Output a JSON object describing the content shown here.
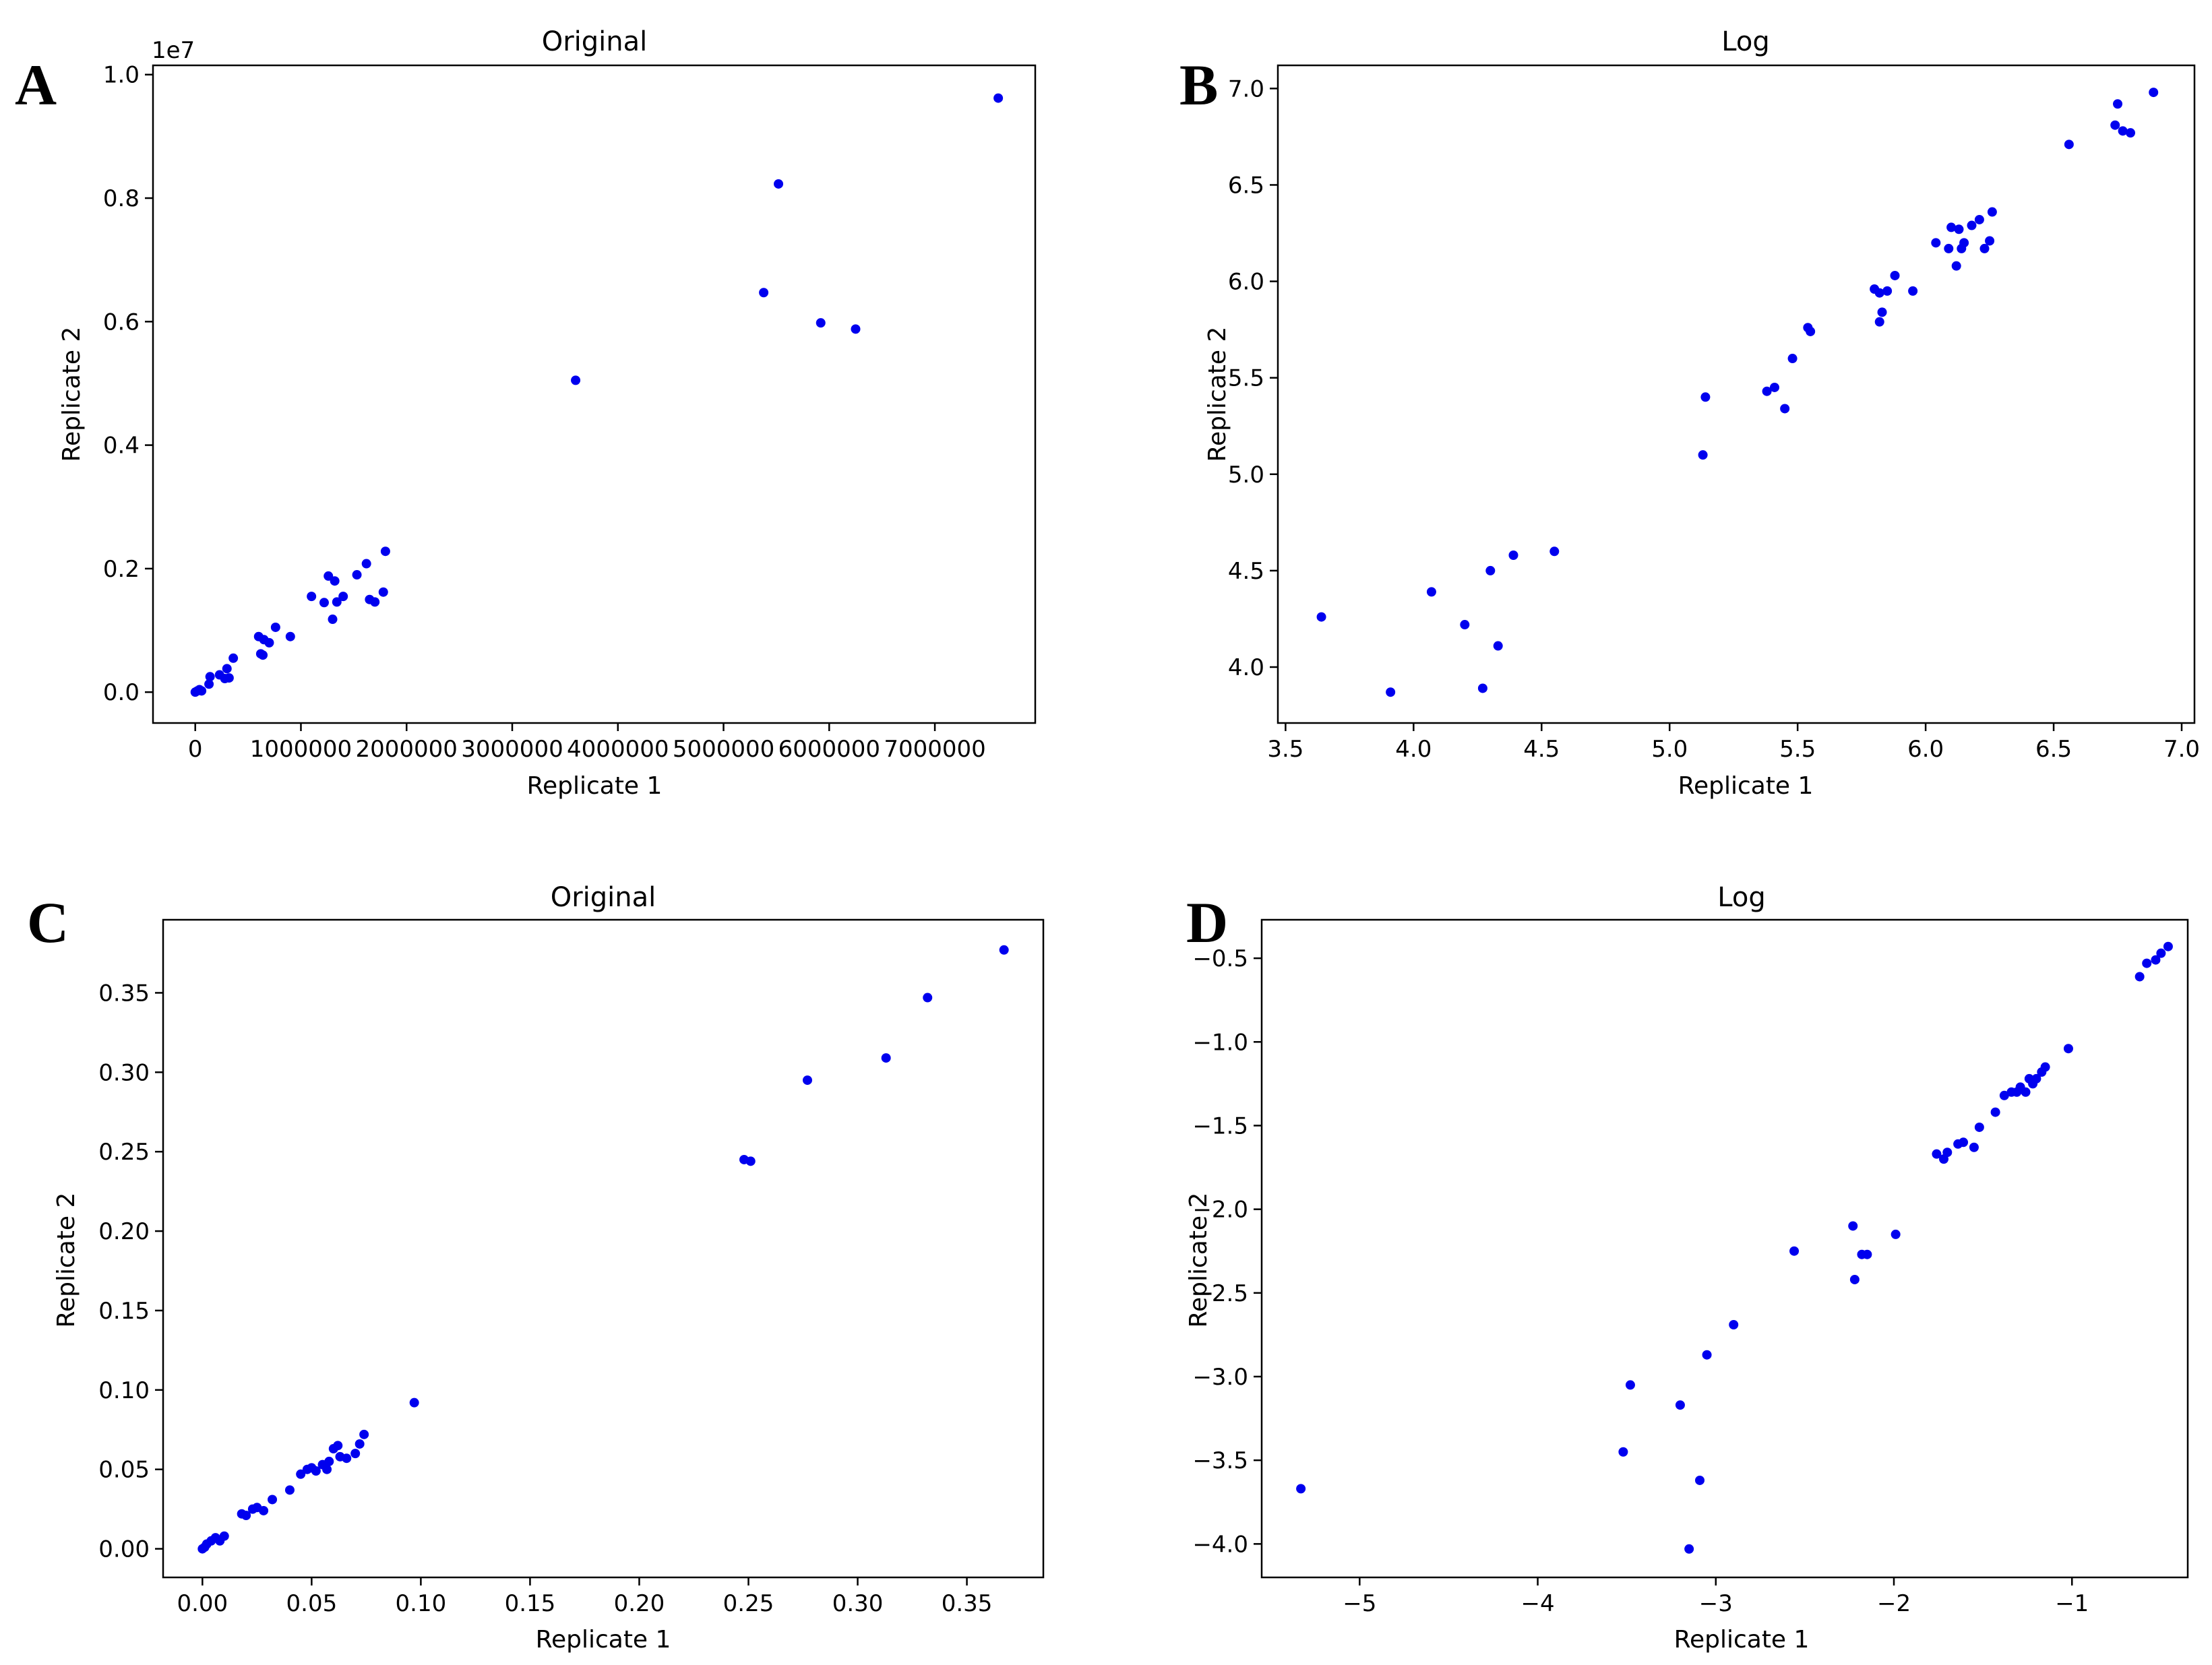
{
  "colors": {
    "point": "#0000ee",
    "axis": "#000000",
    "background": "#ffffff"
  },
  "chart_data": [
    {
      "panel": "A",
      "type": "scatter",
      "title": "Original",
      "xlabel": "Replicate 1",
      "ylabel": "Replicate 2",
      "y_offset_label": "1e7",
      "xlim": [
        -400000,
        7950000
      ],
      "ylim": [
        -500000,
        10150000
      ],
      "xticks": [
        0,
        1000000,
        2000000,
        3000000,
        4000000,
        5000000,
        6000000,
        7000000
      ],
      "xtick_labels": [
        "0",
        "1000000",
        "2000000",
        "3000000",
        "4000000",
        "5000000",
        "6000000",
        "7000000"
      ],
      "yticks": [
        0,
        2000000,
        4000000,
        6000000,
        8000000,
        10000000
      ],
      "ytick_labels": [
        "0.0",
        "0.2",
        "0.4",
        "0.6",
        "0.8",
        "1.0"
      ],
      "x": [
        0,
        20000,
        40000,
        60000,
        130000,
        140000,
        230000,
        280000,
        300000,
        320000,
        360000,
        600000,
        620000,
        640000,
        650000,
        700000,
        760000,
        900000,
        1100000,
        1220000,
        1260000,
        1300000,
        1320000,
        1340000,
        1400000,
        1530000,
        1620000,
        1650000,
        1700000,
        1780000,
        1800000,
        3600000,
        5380000,
        5520000,
        5920000,
        6250000,
        7600000
      ],
      "y": [
        0,
        20000,
        40000,
        20000,
        130000,
        250000,
        280000,
        220000,
        380000,
        230000,
        550000,
        900000,
        620000,
        600000,
        850000,
        800000,
        1050000,
        900000,
        1550000,
        1450000,
        1880000,
        1180000,
        1800000,
        1460000,
        1550000,
        1900000,
        2080000,
        1500000,
        1460000,
        1620000,
        2280000,
        5050000,
        6470000,
        8230000,
        5980000,
        5880000,
        9620000
      ]
    },
    {
      "panel": "B",
      "type": "scatter",
      "title": "Log",
      "xlabel": "Replicate 1",
      "ylabel": "Replicate 2",
      "xlim": [
        3.47,
        7.05
      ],
      "ylim": [
        3.71,
        7.12
      ],
      "xticks": [
        3.5,
        4.0,
        4.5,
        5.0,
        5.5,
        6.0,
        6.5,
        7.0
      ],
      "xtick_labels": [
        "3.5",
        "4.0",
        "4.5",
        "5.0",
        "5.5",
        "6.0",
        "6.5",
        "7.0"
      ],
      "yticks": [
        4.0,
        4.5,
        5.0,
        5.5,
        6.0,
        6.5,
        7.0
      ],
      "ytick_labels": [
        "4.0",
        "4.5",
        "5.0",
        "5.5",
        "6.0",
        "6.5",
        "7.0"
      ],
      "x": [
        3.64,
        3.91,
        4.07,
        4.2,
        4.27,
        4.3,
        4.33,
        4.39,
        4.55,
        5.13,
        5.14,
        5.38,
        5.41,
        5.45,
        5.48,
        5.54,
        5.55,
        5.8,
        5.82,
        5.82,
        5.83,
        5.85,
        5.88,
        5.95,
        6.04,
        6.09,
        6.1,
        6.12,
        6.13,
        6.14,
        6.15,
        6.18,
        6.21,
        6.23,
        6.25,
        6.26,
        6.56,
        6.74,
        6.75,
        6.77,
        6.8,
        6.89
      ],
      "y": [
        4.26,
        3.87,
        4.39,
        4.22,
        3.89,
        4.5,
        4.11,
        4.58,
        4.6,
        5.1,
        5.4,
        5.43,
        5.45,
        5.34,
        5.6,
        5.76,
        5.74,
        5.96,
        5.94,
        5.79,
        5.84,
        5.95,
        6.03,
        5.95,
        6.2,
        6.17,
        6.28,
        6.08,
        6.27,
        6.17,
        6.2,
        6.29,
        6.32,
        6.17,
        6.21,
        6.36,
        6.71,
        6.81,
        6.92,
        6.78,
        6.77,
        6.98
      ]
    },
    {
      "panel": "C",
      "type": "scatter",
      "title": "Original",
      "xlabel": "Replicate 1",
      "ylabel": "Replicate 2",
      "xlim": [
        -0.018,
        0.385
      ],
      "ylim": [
        -0.018,
        0.396
      ],
      "xticks": [
        0.0,
        0.05,
        0.1,
        0.15,
        0.2,
        0.25,
        0.3,
        0.35
      ],
      "xtick_labels": [
        "0.00",
        "0.05",
        "0.10",
        "0.15",
        "0.20",
        "0.25",
        "0.30",
        "0.35"
      ],
      "yticks": [
        0.0,
        0.05,
        0.1,
        0.15,
        0.2,
        0.25,
        0.3,
        0.35
      ],
      "ytick_labels": [
        "0.00",
        "0.05",
        "0.10",
        "0.15",
        "0.20",
        "0.25",
        "0.30",
        "0.35"
      ],
      "x": [
        0.0,
        0.001,
        0.002,
        0.004,
        0.006,
        0.008,
        0.01,
        0.018,
        0.02,
        0.023,
        0.025,
        0.028,
        0.032,
        0.04,
        0.045,
        0.048,
        0.05,
        0.052,
        0.055,
        0.057,
        0.058,
        0.06,
        0.062,
        0.063,
        0.066,
        0.07,
        0.072,
        0.074,
        0.097,
        0.248,
        0.251,
        0.277,
        0.313,
        0.332,
        0.367
      ],
      "y": [
        0.0,
        0.001,
        0.003,
        0.005,
        0.007,
        0.005,
        0.008,
        0.022,
        0.021,
        0.025,
        0.026,
        0.024,
        0.031,
        0.037,
        0.047,
        0.05,
        0.051,
        0.049,
        0.053,
        0.05,
        0.055,
        0.063,
        0.065,
        0.058,
        0.057,
        0.06,
        0.066,
        0.072,
        0.092,
        0.245,
        0.244,
        0.295,
        0.309,
        0.347,
        0.377
      ]
    },
    {
      "panel": "D",
      "type": "scatter",
      "title": "Log",
      "xlabel": "Replicate 1",
      "ylabel": "Replicate 2",
      "xlim": [
        -5.55,
        -0.35
      ],
      "ylim": [
        -4.2,
        -0.27
      ],
      "xticks": [
        -5,
        -4,
        -3,
        -2,
        -1
      ],
      "xtick_labels": [
        "−5",
        "−4",
        "−3",
        "−2",
        "−1"
      ],
      "yticks": [
        -4.0,
        -3.5,
        -3.0,
        -2.5,
        -2.0,
        -1.5,
        -1.0,
        -0.5
      ],
      "ytick_labels": [
        "−4.0",
        "−3.5",
        "−3.0",
        "−2.5",
        "−2.0",
        "−1.5",
        "−1.0",
        "−0.5"
      ],
      "x": [
        -5.33,
        -3.52,
        -3.48,
        -3.2,
        -3.15,
        -3.09,
        -3.05,
        -2.9,
        -2.56,
        -2.23,
        -2.22,
        -2.18,
        -2.15,
        -1.99,
        -1.76,
        -1.72,
        -1.7,
        -1.64,
        -1.61,
        -1.55,
        -1.52,
        -1.43,
        -1.38,
        -1.34,
        -1.31,
        -1.29,
        -1.26,
        -1.24,
        -1.22,
        -1.2,
        -1.17,
        -1.15,
        -1.02,
        -0.62,
        -0.58,
        -0.53,
        -0.5,
        -0.46
      ],
      "y": [
        -3.67,
        -3.45,
        -3.05,
        -3.17,
        -4.03,
        -3.62,
        -2.87,
        -2.69,
        -2.25,
        -2.1,
        -2.42,
        -2.27,
        -2.27,
        -2.15,
        -1.67,
        -1.7,
        -1.66,
        -1.61,
        -1.6,
        -1.63,
        -1.51,
        -1.42,
        -1.32,
        -1.3,
        -1.3,
        -1.27,
        -1.3,
        -1.22,
        -1.25,
        -1.22,
        -1.18,
        -1.15,
        -1.04,
        -0.61,
        -0.53,
        -0.51,
        -0.47,
        -0.43
      ]
    }
  ]
}
